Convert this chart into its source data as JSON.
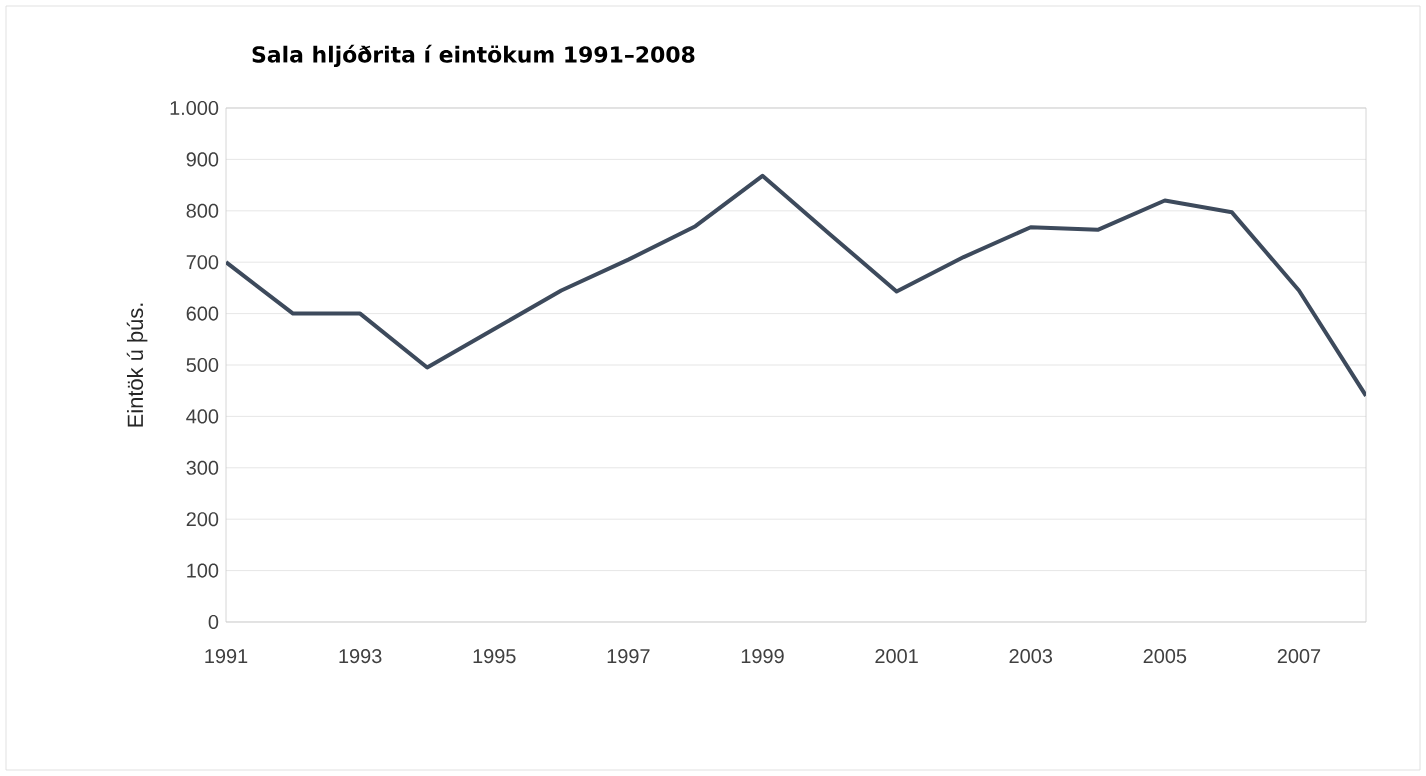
{
  "chart_data": {
    "type": "line",
    "title": "Sala hljóðrita í eintökum 1991–2008",
    "ylabel": "Eintök ú þús.",
    "x": [
      1991,
      1992,
      1993,
      1994,
      1995,
      1996,
      1997,
      1998,
      1999,
      2000,
      2001,
      2002,
      2003,
      2004,
      2005,
      2006,
      2007,
      2008
    ],
    "series": [
      {
        "color": "#3d4a5c",
        "values": [
          700,
          600,
          600,
          495,
          570,
          645,
          705,
          770,
          868,
          755,
          643,
          710,
          768,
          763,
          820,
          797,
          645,
          440
        ]
      }
    ],
    "xlim": [
      1991,
      2008
    ],
    "xticks": [
      1991,
      1993,
      1995,
      1997,
      1999,
      2001,
      2003,
      2005,
      2007
    ],
    "ylim": [
      0,
      1000
    ],
    "yticks": [
      0,
      100,
      200,
      300,
      400,
      500,
      600,
      700,
      800,
      900,
      {
        "value": 1000,
        "label": "1.000"
      }
    ],
    "grid": "y",
    "marker": "none",
    "line_style": "solid"
  }
}
